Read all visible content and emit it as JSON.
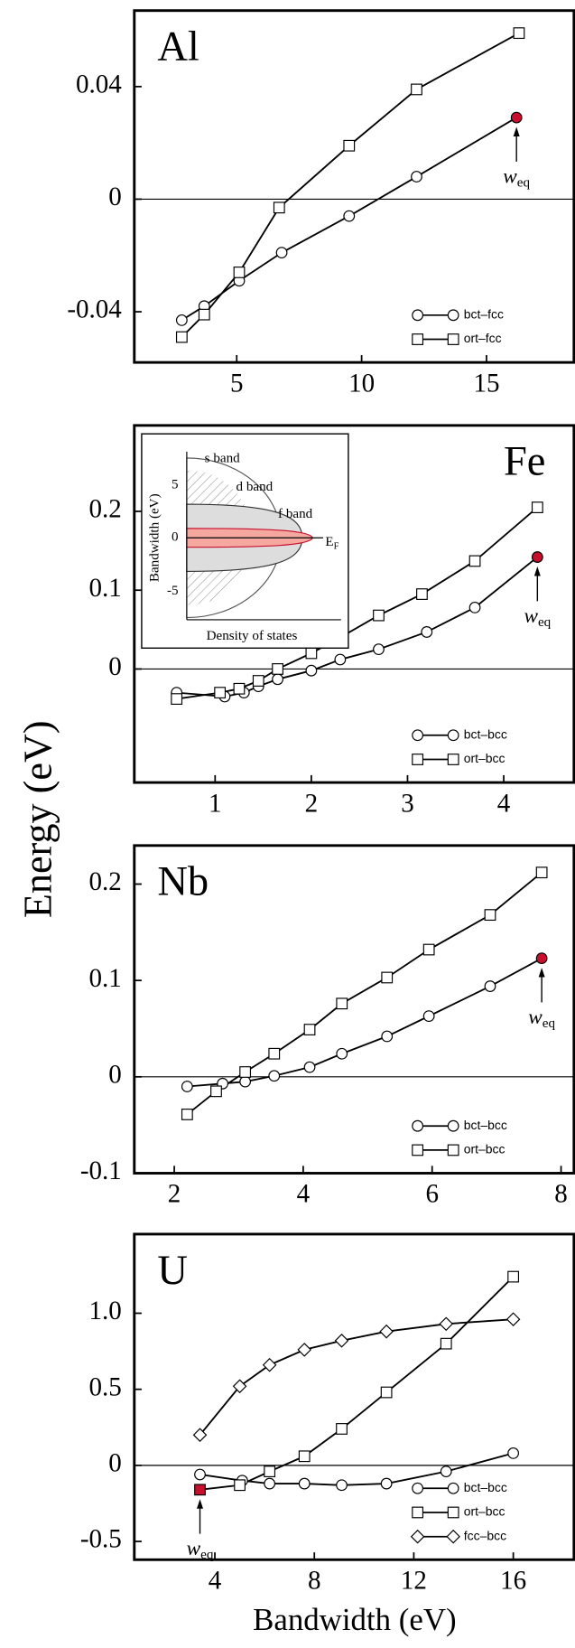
{
  "y_label": "Energy (eV)",
  "x_label": "Bandwidth (eV)",
  "chart_data": [
    {
      "type": "line",
      "title": "Al",
      "title_position": "left",
      "xlim": [
        0.9,
        18.5
      ],
      "ylim": [
        -0.058,
        0.067
      ],
      "xticks": [
        5,
        10,
        15
      ],
      "yticks": [
        -0.04,
        0,
        0.04
      ],
      "zero_line": true,
      "legend": "lower right",
      "highlight": {
        "series": 0,
        "index": 6,
        "color": "#c8102e"
      },
      "annotation": {
        "text": "w",
        "subscript": "eq"
      },
      "series": [
        {
          "name": "bct–fcc",
          "marker": "circle",
          "x": [
            2.8,
            3.7,
            5.1,
            6.8,
            9.5,
            12.2,
            16.2
          ],
          "values": [
            -0.043,
            -0.038,
            -0.029,
            -0.019,
            -0.006,
            0.008,
            0.029
          ]
        },
        {
          "name": "ort–fcc",
          "marker": "square",
          "x": [
            2.8,
            3.7,
            5.1,
            6.7,
            9.5,
            12.2,
            16.3
          ],
          "values": [
            -0.049,
            -0.041,
            -0.026,
            -0.003,
            0.019,
            0.039,
            0.059
          ]
        }
      ]
    },
    {
      "type": "line",
      "title": "Fe",
      "title_position": "right",
      "xlim": [
        0.16,
        4.73
      ],
      "ylim": [
        -0.144,
        0.309
      ],
      "xticks": [
        1,
        2,
        3,
        4
      ],
      "yticks": [
        0,
        0.1,
        0.2
      ],
      "zero_line": true,
      "legend": "lower right",
      "highlight": {
        "series": 0,
        "index": 10,
        "color": "#c8102e"
      },
      "annotation": {
        "text": "w",
        "subscript": "eq"
      },
      "inset": {
        "labels": [
          "s band",
          "d band",
          "f band"
        ],
        "fermi": {
          "text": "E",
          "subscript": "F"
        },
        "y_label": "Bandwidth (eV)",
        "x_label": "Density of states",
        "yticks": [
          5,
          0,
          -5
        ]
      },
      "series": [
        {
          "name": "bct–bcc",
          "marker": "circle",
          "x": [
            0.6,
            1.1,
            1.3,
            1.45,
            1.65,
            2.0,
            2.3,
            2.7,
            3.2,
            3.7,
            4.35
          ],
          "values": [
            -0.03,
            -0.035,
            -0.03,
            -0.022,
            -0.013,
            -0.002,
            0.012,
            0.025,
            0.047,
            0.078,
            0.142
          ]
        },
        {
          "name": "ort–bcc",
          "marker": "square",
          "x": [
            0.6,
            1.05,
            1.25,
            1.45,
            1.65,
            2.0,
            2.3,
            2.7,
            3.15,
            3.7,
            4.35
          ],
          "values": [
            -0.038,
            -0.03,
            -0.025,
            -0.015,
            0,
            0.02,
            0.04,
            0.068,
            0.095,
            0.137,
            0.205
          ]
        }
      ]
    },
    {
      "type": "line",
      "title": "Nb",
      "title_position": "left",
      "xlim": [
        1.38,
        8.2
      ],
      "ylim": [
        -0.1,
        0.24
      ],
      "xticks": [
        2,
        4,
        6,
        8
      ],
      "yticks": [
        -0.1,
        0,
        0.1,
        0.2
      ],
      "zero_line": true,
      "legend": "lower right",
      "highlight": {
        "series": 0,
        "index": 9,
        "color": "#c8102e"
      },
      "annotation": {
        "text": "w",
        "subscript": "eq"
      },
      "series": [
        {
          "name": "bct–bcc",
          "marker": "circle",
          "x": [
            2.2,
            2.75,
            3.1,
            3.55,
            4.1,
            4.6,
            5.3,
            5.95,
            6.9,
            7.7
          ],
          "values": [
            -0.01,
            -0.007,
            -0.005,
            0.001,
            0.01,
            0.024,
            0.042,
            0.063,
            0.094,
            0.123
          ]
        },
        {
          "name": "ort–bcc",
          "marker": "square",
          "x": [
            2.2,
            2.65,
            3.1,
            3.55,
            4.1,
            4.6,
            5.3,
            5.95,
            6.9,
            7.7
          ],
          "values": [
            -0.039,
            -0.015,
            0.005,
            0.024,
            0.049,
            0.076,
            0.103,
            0.132,
            0.168,
            0.212
          ]
        }
      ]
    },
    {
      "type": "line",
      "title": "U",
      "title_position": "left",
      "xlim": [
        0.76,
        18.44
      ],
      "ylim": [
        -0.62,
        1.52
      ],
      "xticks": [
        4,
        8,
        12,
        16
      ],
      "yticks": [
        -0.5,
        0,
        0.5,
        {
          "value": 1,
          "label": "1.0"
        }
      ],
      "zero_line": true,
      "legend": "lower right",
      "highlight": {
        "series": 1,
        "index": 0,
        "color": "#c8102e"
      },
      "annotation": {
        "text": "w",
        "subscript": "eq"
      },
      "series": [
        {
          "name": "bct–bcc",
          "marker": "circle",
          "x": [
            3.4,
            5.1,
            6.2,
            7.6,
            9.1,
            10.9,
            13.3,
            16
          ],
          "values": [
            -0.06,
            -0.1,
            -0.12,
            -0.12,
            -0.13,
            -0.12,
            -0.04,
            0.08
          ]
        },
        {
          "name": "ort–bcc",
          "marker": "square",
          "x": [
            3.4,
            5.0,
            6.2,
            7.6,
            9.1,
            10.9,
            13.3,
            16
          ],
          "values": [
            -0.16,
            -0.13,
            -0.04,
            0.06,
            0.24,
            0.48,
            0.8,
            1.24
          ]
        },
        {
          "name": "fcc–bcc",
          "marker": "diamond",
          "x": [
            3.4,
            5.0,
            6.2,
            7.6,
            9.1,
            10.9,
            13.3,
            16
          ],
          "values": [
            0.2,
            0.52,
            0.66,
            0.76,
            0.82,
            0.88,
            0.93,
            0.96
          ]
        }
      ]
    }
  ]
}
